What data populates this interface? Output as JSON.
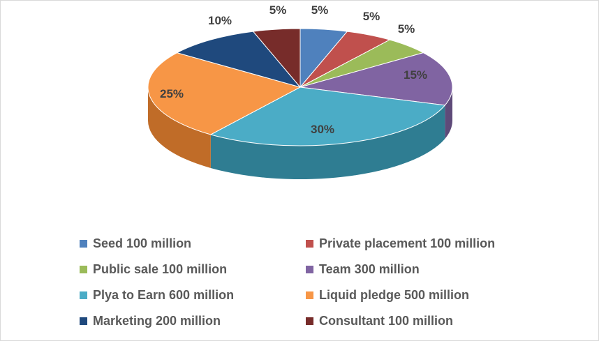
{
  "chart_data": {
    "type": "pie",
    "style": "3d",
    "legend_position": "bottom",
    "slices": [
      {
        "label": "Seed 100 million",
        "value": 5,
        "data_label": "5%",
        "color": "#4f81bd",
        "side": "#3a6293"
      },
      {
        "label": "Private placement 100 million",
        "value": 5,
        "data_label": "5%",
        "color": "#c0504d",
        "side": "#923c39"
      },
      {
        "label": "Public sale 100 million",
        "value": 5,
        "data_label": "5%",
        "color": "#9bbb59",
        "side": "#748d41"
      },
      {
        "label": "Team 300 million",
        "value": 15,
        "data_label": "15%",
        "color": "#8064a2",
        "side": "#5e4a79"
      },
      {
        "label": "Plya to Earn 600 million",
        "value": 30,
        "data_label": "30%",
        "color": "#4bacc6",
        "side": "#2f7d92"
      },
      {
        "label": "Liquid pledge 500 million",
        "value": 25,
        "data_label": "25%",
        "color": "#f79646",
        "side": "#c06c28"
      },
      {
        "label": "Marketing 200 million",
        "value": 10,
        "data_label": "10%",
        "color": "#1f497d",
        "side": "#15325a"
      },
      {
        "label": "Consultant 100 million",
        "value": 5,
        "data_label": "5%",
        "color": "#772c2a",
        "side": "#561e1d"
      }
    ]
  }
}
